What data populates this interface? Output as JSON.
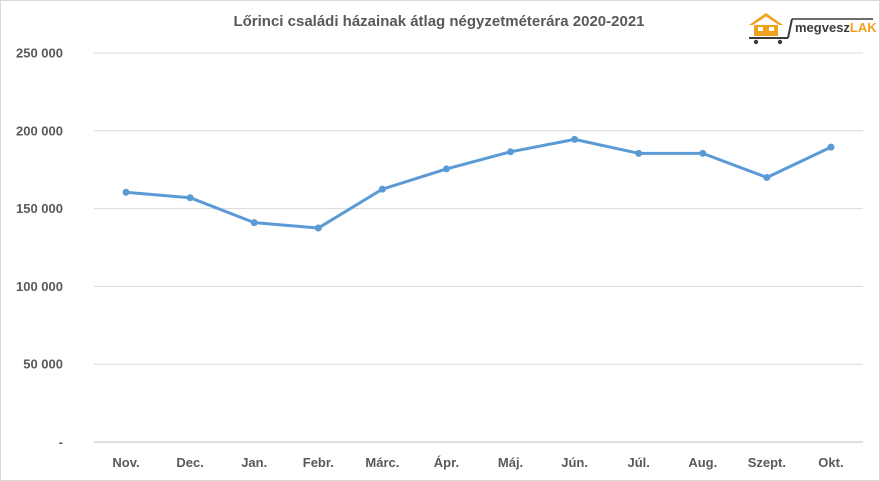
{
  "chart_data": {
    "type": "line",
    "title": "Lőrinci családi házainak átlag négyzetméterára 2020-2021",
    "categories": [
      "Nov.",
      "Dec.",
      "Jan.",
      "Febr.",
      "Márc.",
      "Ápr.",
      "Máj.",
      "Jún.",
      "Júl.",
      "Aug.",
      "Szept.",
      "Okt."
    ],
    "series": [
      {
        "values": [
          160500,
          157000,
          141000,
          137500,
          162500,
          175500,
          186500,
          194500,
          185500,
          185500,
          170000,
          189500
        ]
      }
    ],
    "ylim": [
      0,
      250000
    ],
    "yticks": [
      0,
      50000,
      100000,
      150000,
      200000,
      250000
    ],
    "ytick_labels": [
      "-",
      "50 000",
      "100 000",
      "150 000",
      "200 000",
      "250 000"
    ],
    "grid": true,
    "color": "#5b9bd5"
  },
  "logo": {
    "text_main": "megvesz",
    "text_accent": "LAK",
    "colors": {
      "house": "#f0a21e",
      "cart": "#3c3c3c"
    }
  }
}
